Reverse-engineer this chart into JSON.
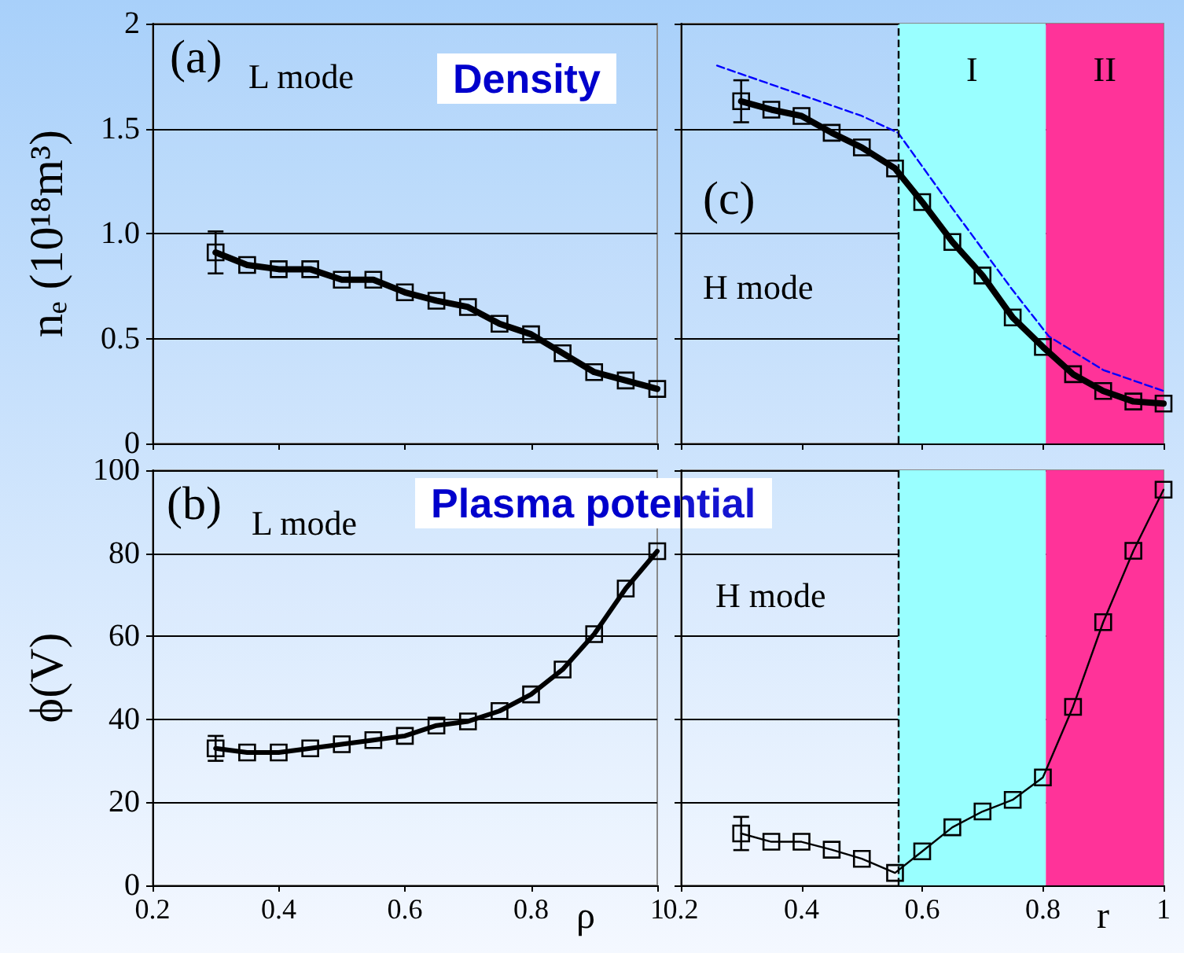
{
  "chart_data": [
    {
      "type": "line",
      "ylabel": "nₑ (10¹⁸m³)",
      "annotations": [
        "(a)",
        "L mode",
        "Density"
      ],
      "xlim": [
        0.2,
        1
      ],
      "xticks": [
        0.2,
        0.4,
        0.6,
        0.8,
        1
      ],
      "ylim": [
        0,
        2
      ],
      "yticks": [
        0,
        0.5,
        {
          "value": 1,
          "label": "1.0"
        },
        1.5,
        2
      ],
      "grid": "y",
      "tick_labels": "y",
      "marker": "square",
      "x": [
        0.3,
        0.35,
        0.4,
        0.45,
        0.5,
        0.55,
        0.6,
        0.65,
        0.7,
        0.75,
        0.8,
        0.85,
        0.9,
        0.95,
        1.0
      ],
      "series": [
        {
          "color": "#000000",
          "values": [
            0.91,
            0.85,
            0.83,
            0.83,
            0.78,
            0.78,
            0.72,
            0.68,
            0.65,
            0.57,
            0.52,
            0.43,
            0.34,
            0.3,
            0.26
          ],
          "errors": [
            0.1,
            null,
            null,
            null,
            null,
            null,
            null,
            null,
            null,
            null,
            null,
            null,
            null,
            null,
            null
          ]
        }
      ]
    },
    {
      "type": "line",
      "annotations": [
        "(c)",
        "H mode"
      ],
      "xlim": [
        0.2,
        1
      ],
      "xticks": [
        0.2,
        0.4,
        0.6,
        0.8,
        1
      ],
      "ylim": [
        0,
        2
      ],
      "yticks": [
        0,
        0.5,
        1,
        1.5,
        2
      ],
      "grid": "y",
      "tick_labels": false,
      "marker": "square",
      "x": [
        0.3,
        0.35,
        0.4,
        0.45,
        0.5,
        0.555,
        0.6,
        0.65,
        0.7,
        0.75,
        0.8,
        0.85,
        0.9,
        0.95,
        1.0
      ],
      "ref_lines": [
        {
          "axis": "x",
          "value": 0.56,
          "label": null,
          "color": "#000000",
          "line_style": "dashed"
        }
      ],
      "bands": [
        {
          "axis": "x",
          "from": 0.56,
          "to": 0.805,
          "label": "I",
          "color": "#99ffff"
        },
        {
          "axis": "x",
          "from": 0.805,
          "to": 1,
          "label": "II",
          "color": "#ff3399"
        }
      ],
      "series": [
        {
          "color": "#000000",
          "values": [
            1.63,
            1.59,
            1.56,
            1.48,
            1.41,
            1.31,
            1.15,
            0.96,
            0.8,
            0.6,
            0.46,
            0.33,
            0.25,
            0.2,
            0.19
          ],
          "errors": [
            0.1,
            null,
            null,
            null,
            null,
            null,
            null,
            null,
            null,
            null,
            null,
            null,
            null,
            null,
            null
          ]
        },
        {
          "color": "#0000ff",
          "marker": "none",
          "line_style": "dashed",
          "x": [
            0.26,
            0.4,
            0.5,
            0.56,
            0.65,
            0.75,
            0.81,
            0.9,
            1.0
          ],
          "values": [
            1.8,
            1.66,
            1.56,
            1.48,
            1.12,
            0.73,
            0.51,
            0.35,
            0.25
          ]
        }
      ]
    },
    {
      "type": "line",
      "ylabel": "ϕ(V)",
      "xlabel": "ρ",
      "annotations": [
        "(b)",
        "L mode",
        "Plasma potential"
      ],
      "xlim": [
        0.2,
        1
      ],
      "xticks": [
        0.2,
        0.4,
        0.6,
        0.8,
        1
      ],
      "ylim": [
        0,
        100
      ],
      "yticks": [
        0,
        20,
        40,
        60,
        80,
        100
      ],
      "grid": "y",
      "marker": "square",
      "x": [
        0.3,
        0.35,
        0.4,
        0.45,
        0.5,
        0.55,
        0.6,
        0.65,
        0.7,
        0.75,
        0.8,
        0.85,
        0.9,
        0.95,
        1.0
      ],
      "series": [
        {
          "color": "#000000",
          "values": [
            33,
            32,
            32,
            33,
            34,
            35,
            36,
            38.5,
            39.5,
            42,
            46,
            52,
            60.5,
            71.5,
            80.5
          ],
          "errors": [
            3,
            null,
            null,
            null,
            null,
            null,
            null,
            null,
            null,
            null,
            null,
            null,
            null,
            null,
            null
          ]
        }
      ]
    },
    {
      "type": "line",
      "xlabel": "r",
      "annotations": [
        "H mode"
      ],
      "xlim": [
        0.2,
        1
      ],
      "xticks": [
        0.2,
        0.4,
        0.6,
        0.8,
        1
      ],
      "ylim": [
        0,
        100
      ],
      "yticks": [
        0,
        20,
        40,
        60,
        80,
        100
      ],
      "grid": "y",
      "tick_labels": "x",
      "marker": "square",
      "x": [
        0.3,
        0.35,
        0.4,
        0.45,
        0.5,
        0.555,
        0.6,
        0.65,
        0.7,
        0.75,
        0.8,
        0.85,
        0.9,
        0.95,
        1.0
      ],
      "ref_lines": [
        {
          "axis": "x",
          "value": 0.56,
          "label": null,
          "color": "#000000",
          "line_style": "dashed"
        }
      ],
      "bands": [
        {
          "axis": "x",
          "from": 0.56,
          "to": 0.805,
          "label": null,
          "color": "#99ffff"
        },
        {
          "axis": "x",
          "from": 0.805,
          "to": 1,
          "label": null,
          "color": "#ff3399"
        }
      ],
      "series": [
        {
          "color": "#000000",
          "values": [
            12.5,
            10.5,
            10.5,
            8.6,
            6.4,
            3,
            8.2,
            14,
            17.8,
            20.6,
            26,
            43,
            63.4,
            80.6,
            95.3
          ],
          "errors": [
            4,
            null,
            null,
            null,
            null,
            null,
            null,
            null,
            null,
            null,
            null,
            null,
            null,
            null,
            null
          ]
        }
      ]
    }
  ]
}
